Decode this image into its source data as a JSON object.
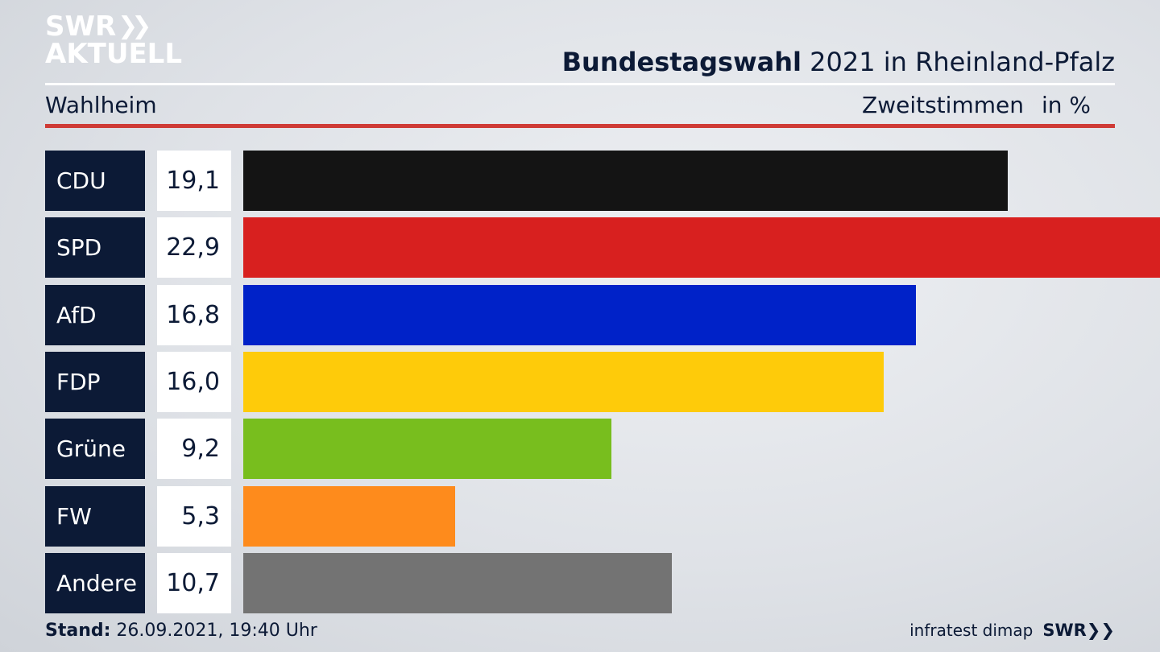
{
  "logo": {
    "line1": "SWR",
    "line2": "AKTUELL"
  },
  "header": {
    "title_bold": "Bundestagswahl",
    "title_rest": "2021 in Rheinland-Pfalz",
    "location": "Wahlheim",
    "measure": "Zweitstimmen",
    "unit": "in %"
  },
  "chart_data": {
    "type": "bar",
    "orientation": "horizontal",
    "categories": [
      "CDU",
      "SPD",
      "AfD",
      "FDP",
      "Grüne",
      "FW",
      "Andere"
    ],
    "values": [
      19.1,
      22.9,
      16.8,
      16.0,
      9.2,
      5.3,
      10.7
    ],
    "value_labels": [
      "19,1",
      "22,9",
      "16,8",
      "16,0",
      "9,2",
      "5,3",
      "10,7"
    ],
    "colors": [
      "#141414",
      "#d8201f",
      "#0022c8",
      "#fecb0a",
      "#78be1e",
      "#fe8b1c",
      "#737373"
    ],
    "xlim": [
      0,
      22.9
    ]
  },
  "footer": {
    "stand_label": "Stand:",
    "stand_value": "26.09.2021, 19:40 Uhr",
    "source": "infratest dimap",
    "brand": "SWR"
  }
}
